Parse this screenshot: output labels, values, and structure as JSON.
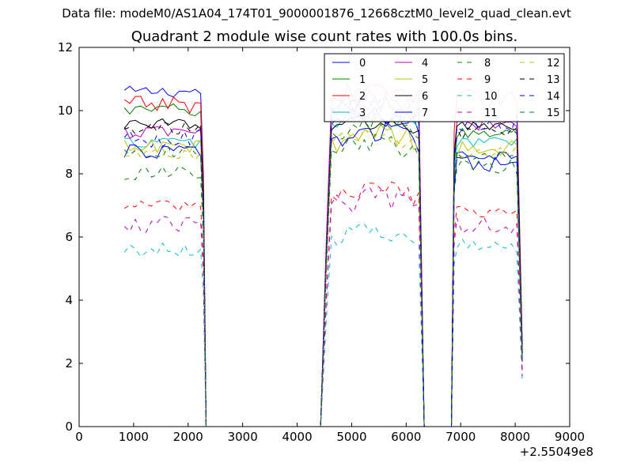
{
  "figure": {
    "suptitle": "Data file: modeM0/AS1A04_174T01_9000001876_12668cztM0_level2_quad_clean.evt",
    "title": "Quadrant 2 module wise count rates with 100.0s bins.",
    "x_offset_label": "+2.55049e8"
  },
  "chart_data": {
    "type": "line",
    "title": "Quadrant 2 module wise count rates with 100.0s bins.",
    "xlabel": "",
    "ylabel": "",
    "x_offset": 255049000,
    "xlim": [
      0,
      9000
    ],
    "ylim": [
      0,
      12
    ],
    "xticks": [
      0,
      1000,
      2000,
      3000,
      4000,
      5000,
      6000,
      7000,
      8000,
      9000
    ],
    "yticks": [
      0,
      2,
      4,
      6,
      8,
      10,
      12
    ],
    "grid": false,
    "legend": {
      "placement": "top-right",
      "columns": 4
    },
    "segments": [
      {
        "x_start": 830,
        "x_end": 2230,
        "drop_x": 2330
      },
      {
        "x_start": 4630,
        "x_end": 6230,
        "rise_x": 4430,
        "drop_x": 6330
      },
      {
        "x_start": 6930,
        "x_end": 8030,
        "rise_x": 6830,
        "end_x": 8130
      }
    ],
    "gap_ranges": [
      [
        2330,
        4430
      ],
      [
        6330,
        6830
      ]
    ],
    "series": [
      {
        "name": "0",
        "color": "#0000ff",
        "dash": "solid",
        "level1": 10.6,
        "level2": 9.5,
        "level3": 8.6
      },
      {
        "name": "1",
        "color": "#008000",
        "dash": "solid",
        "level1": 10.0,
        "level2": 9.9,
        "level3": 9.3
      },
      {
        "name": "2",
        "color": "#ff0000",
        "dash": "solid",
        "level1": 10.2,
        "level2": 10.3,
        "level3": 10.4
      },
      {
        "name": "3",
        "color": "#00bfbf",
        "dash": "solid",
        "level1": 9.0,
        "level2": 9.5,
        "level3": 9.0
      },
      {
        "name": "4",
        "color": "#bf00bf",
        "dash": "solid",
        "level1": 9.3,
        "level2": 10.0,
        "level3": 9.6
      },
      {
        "name": "5",
        "color": "#bfbf00",
        "dash": "solid",
        "level1": 8.8,
        "level2": 9.0,
        "level3": 8.8
      },
      {
        "name": "6",
        "color": "#000000",
        "dash": "solid",
        "level1": 9.6,
        "level2": 9.3,
        "level3": 9.5
      },
      {
        "name": "7",
        "color": "#0000ff",
        "dash": "solid",
        "level1": 8.7,
        "level2": 9.0,
        "level3": 8.3
      },
      {
        "name": "8",
        "color": "#008000",
        "dash": "dashed",
        "level1": 8.0,
        "level2": 8.6,
        "level3": 8.2
      },
      {
        "name": "9",
        "color": "#ff0000",
        "dash": "dashed",
        "level1": 7.0,
        "level2": 7.2,
        "level3": 6.8
      },
      {
        "name": "10",
        "color": "#00bfbf",
        "dash": "dashed",
        "level1": 5.6,
        "level2": 5.9,
        "level3": 5.7
      },
      {
        "name": "11",
        "color": "#bf00bf",
        "dash": "dashed",
        "level1": 6.4,
        "level2": 6.9,
        "level3": 6.4
      },
      {
        "name": "12",
        "color": "#bfbf00",
        "dash": "dashed",
        "level1": 8.6,
        "level2": 8.9,
        "level3": 8.7
      },
      {
        "name": "13",
        "color": "#000000",
        "dash": "dashed",
        "level1": 9.4,
        "level2": 9.6,
        "level3": 9.3
      },
      {
        "name": "14",
        "color": "#0000ff",
        "dash": "dashed",
        "level1": 9.1,
        "level2": 9.8,
        "level3": 9.6
      },
      {
        "name": "15",
        "color": "#008000",
        "dash": "dashed",
        "level1": 8.7,
        "level2": 9.2,
        "level3": 8.6
      }
    ]
  }
}
